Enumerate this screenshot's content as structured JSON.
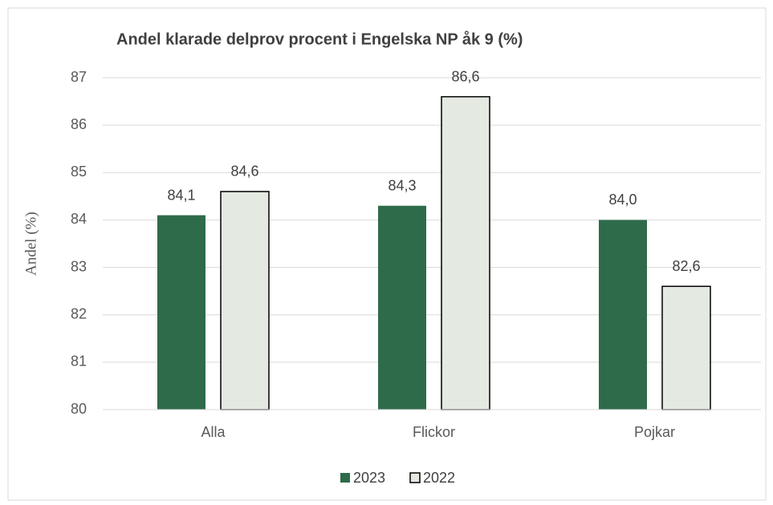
{
  "chart_data": {
    "type": "bar",
    "title": "Andel klarade delprov procent i Engelska NP åk 9 (%)",
    "y_label": "Andel (%)",
    "categories": [
      "Alla",
      "Flickor",
      "Pojkar"
    ],
    "series": [
      {
        "name": "2023",
        "color": "#2e6b4a",
        "values": [
          84.1,
          84.3,
          84.0
        ],
        "value_labels": [
          "84,1",
          "84,3",
          "84,0"
        ]
      },
      {
        "name": "2022",
        "color": "#e4e9e1",
        "values": [
          84.6,
          86.6,
          82.6
        ],
        "value_labels": [
          "84,6",
          "86,6",
          "82,6"
        ]
      }
    ],
    "ylim": [
      80,
      87
    ],
    "yticks": [
      80,
      81,
      82,
      83,
      84,
      85,
      86,
      87
    ],
    "grid": true,
    "legend": "bottom"
  }
}
